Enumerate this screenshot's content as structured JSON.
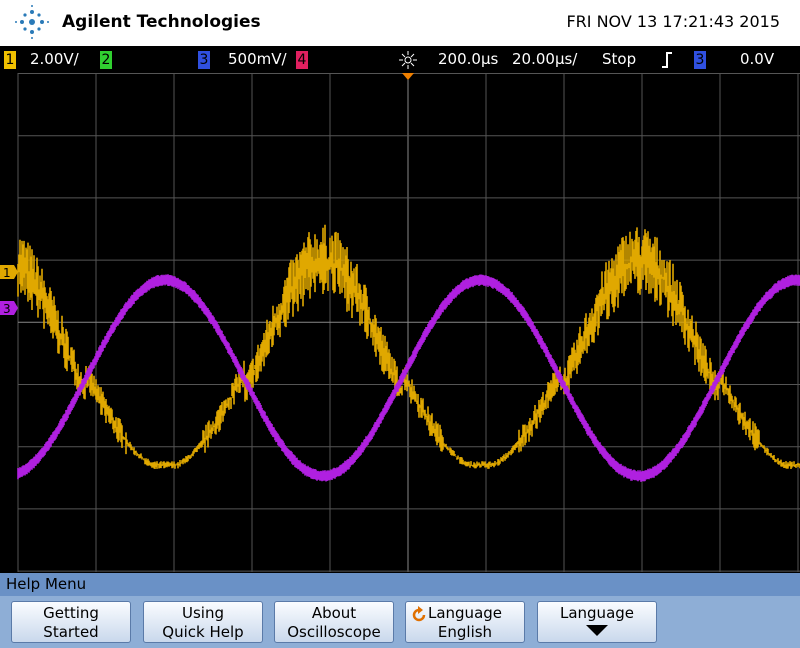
{
  "header": {
    "brand": "Agilent Technologies",
    "datetime": "FRI NOV 13 17:21:43 2015"
  },
  "status": {
    "ch1": {
      "number": "1",
      "scale": "2.00V/"
    },
    "ch2": {
      "number": "2"
    },
    "ch3": {
      "number": "3",
      "scale": "500mV/"
    },
    "ch4": {
      "number": "4"
    },
    "time_delay": "200.0µs",
    "time_scale": "20.00µs/",
    "run_state": "Stop",
    "trigger_source": "3",
    "trigger_level": "0.0V"
  },
  "markers": [
    "1",
    "3"
  ],
  "menu": {
    "title": "Help Menu",
    "buttons": [
      [
        "Getting",
        "Started"
      ],
      [
        "Using",
        "Quick Help"
      ],
      [
        "About",
        "Oscilloscope"
      ],
      [
        "Language",
        "English"
      ],
      [
        "Language"
      ]
    ]
  }
}
